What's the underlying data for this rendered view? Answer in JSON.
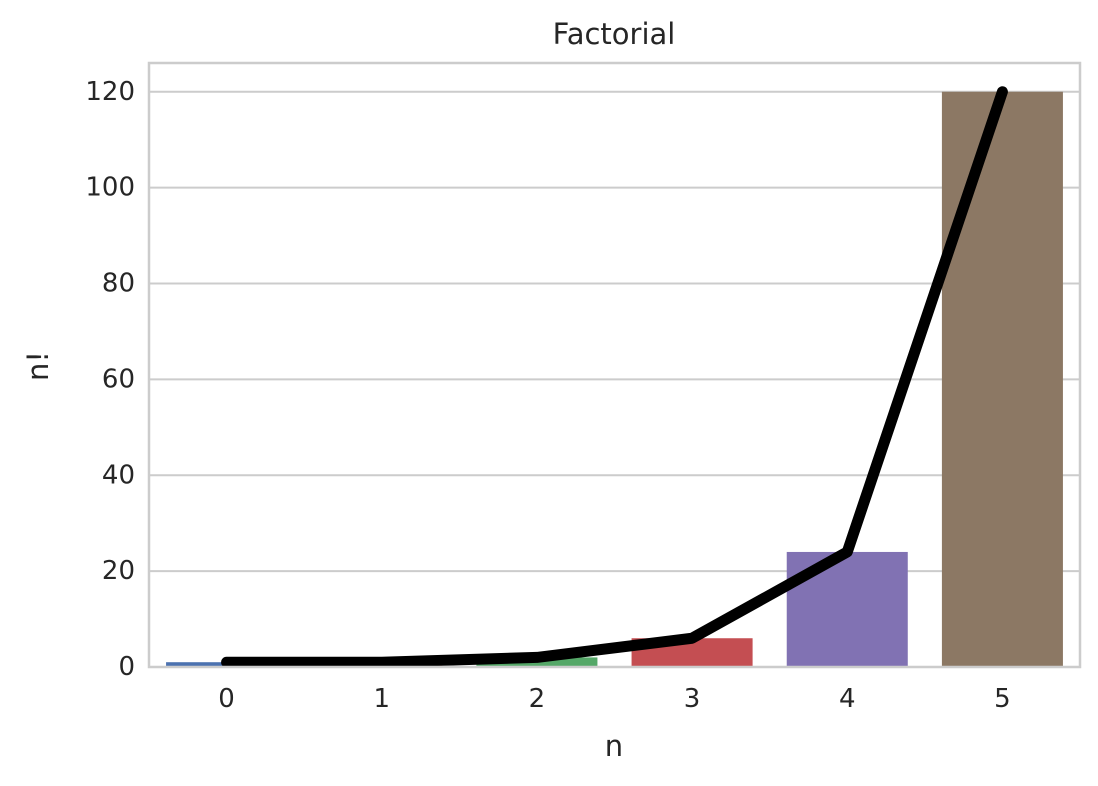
{
  "chart_data": {
    "type": "bar",
    "title": "Factorial",
    "xlabel": "n",
    "ylabel": "n!",
    "categories": [
      "0",
      "1",
      "2",
      "3",
      "4",
      "5"
    ],
    "values": [
      1,
      1,
      2,
      6,
      24,
      120
    ],
    "bar_colors": [
      "#4c72b0",
      "#dd8452",
      "#55a868",
      "#c44e52",
      "#8172b3",
      "#8c7864"
    ],
    "line_series": {
      "values": [
        1,
        1,
        2,
        6,
        24,
        120
      ],
      "color": "#000000"
    },
    "ylim": [
      0,
      126
    ],
    "yticks": [
      0,
      20,
      40,
      60,
      80,
      100,
      120
    ],
    "grid": true,
    "grid_color": "#cccccc",
    "spine_color": "#cccccc",
    "legend": "none"
  }
}
